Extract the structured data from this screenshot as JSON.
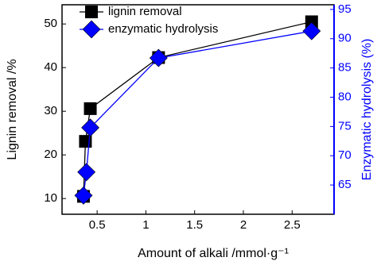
{
  "chart_data": {
    "type": "line",
    "x_label": "Amount of alkali /mmol·g⁻¹",
    "y_label": "Lignin removal /%",
    "y2_label": "Enzymatic hydrolysis (%)",
    "xlim": [
      0.14,
      2.93
    ],
    "xticks": [
      0.5,
      1.0,
      1.5,
      2.0,
      2.5
    ],
    "ylim": [
      6.4,
      54.4
    ],
    "yticks": [
      10,
      20,
      30,
      40,
      50
    ],
    "y2lim": [
      60,
      95.8
    ],
    "y2ticks": [
      65,
      70,
      75,
      80,
      85,
      90,
      95
    ],
    "legend": "upper left",
    "series": [
      {
        "name": "lignin removal",
        "color": "#000000",
        "marker": "square",
        "x": [
          0.36,
          0.38,
          0.43,
          1.13,
          2.7
        ],
        "values": [
          10.5,
          23.1,
          30.6,
          42.3,
          50.5
        ]
      },
      {
        "name": "enzymatic hydrolysis",
        "color": "#0000ff",
        "marker": "diamond",
        "axis": "y2",
        "x": [
          0.36,
          0.39,
          0.43,
          1.13,
          2.7
        ],
        "values": [
          63.2,
          67.2,
          74.8,
          86.7,
          91.3
        ]
      }
    ]
  }
}
